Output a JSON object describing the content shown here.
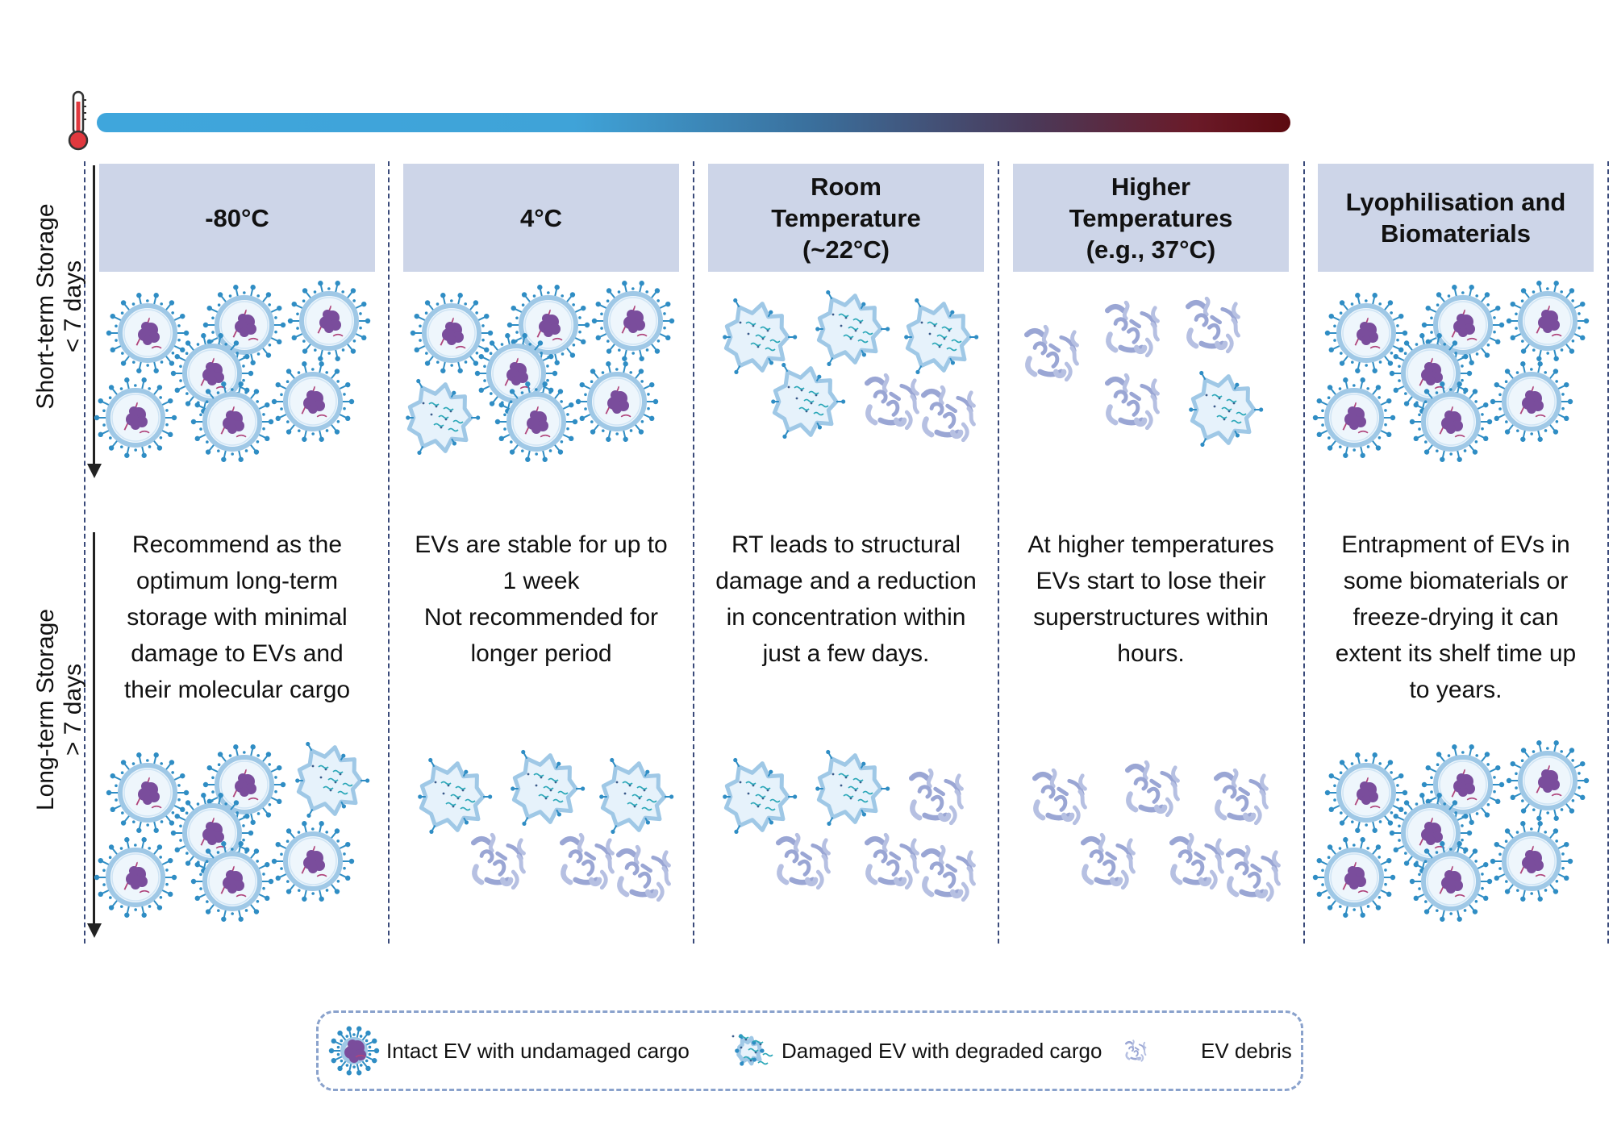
{
  "axis": {
    "short_term": {
      "line1": "Short-term Storage",
      "line2": "< 7 days"
    },
    "long_term": {
      "line1": "Long-term Storage",
      "line2": "> 7 days"
    }
  },
  "columns": [
    {
      "header": "-80°C",
      "description": "Recommend as the\noptimum long-term\nstorage with minimal\ndamage to EVs and\ntheir molecular cargo",
      "top_cluster": [
        "intact",
        "intact",
        "intact",
        "intact",
        "intact",
        "intact",
        "intact"
      ],
      "bottom_cluster": [
        "intact",
        "intact",
        "damaged",
        "intact",
        "intact",
        "intact",
        "intact"
      ]
    },
    {
      "header": "4°C",
      "description": "EVs are stable for up to\n1 week\nNot recommended for\nlonger period",
      "top_cluster": [
        "intact",
        "intact",
        "intact",
        "intact",
        "damaged",
        "intact",
        "intact"
      ],
      "bottom_cluster": [
        "damaged",
        "damaged",
        "damaged",
        "debris",
        "debris",
        "debris"
      ]
    },
    {
      "header": "Room\nTemperature\n(~22°C)",
      "description": "RT leads to structural\ndamage and a reduction\nin concentration within\njust a few days.",
      "top_cluster": [
        "damaged",
        "damaged",
        "damaged",
        "damaged",
        "debris",
        "debris"
      ],
      "bottom_cluster": [
        "damaged",
        "damaged",
        "debris",
        "debris",
        "debris",
        "debris"
      ]
    },
    {
      "header": "Higher\nTemperatures\n(e.g., 37°C)",
      "description": "At higher temperatures\nEVs start to lose their\nsuperstructures within\nhours.",
      "top_cluster": [
        "debris",
        "debris",
        "debris",
        "debris",
        "damaged"
      ],
      "bottom_cluster": [
        "debris",
        "debris",
        "debris",
        "debris",
        "debris",
        "debris"
      ]
    },
    {
      "header": "Lyophilisation and\nBiomaterials",
      "description": "Entrapment of EVs in\nsome biomaterials or\nfreeze-drying it can\nextent its shelf time up\nto years.",
      "top_cluster": [
        "intact",
        "intact",
        "intact",
        "intact",
        "intact",
        "intact",
        "intact"
      ],
      "bottom_cluster": [
        "intact",
        "intact",
        "intact",
        "intact",
        "intact",
        "intact",
        "intact"
      ]
    }
  ],
  "legend": {
    "intact": {
      "label": "Intact EV with undamaged cargo",
      "icon": "intact-ev-icon"
    },
    "damaged": {
      "label": "Damaged EV with degraded cargo",
      "icon": "damaged-ev-icon"
    },
    "debris": {
      "label": "EV debris",
      "icon": "ev-debris-icon"
    }
  },
  "icons": {
    "thermometer": "thermometer-icon"
  },
  "colors": {
    "header_bg": "#cdd5e8",
    "gradient_cold": "#3fa6dc",
    "gradient_hot": "#5c0a10",
    "ev_membrane": "#9fc8e6",
    "ev_spike": "#2f8dc4",
    "cargo": "#7a4d9c",
    "debris": "#9aa6d4",
    "divider": "#3a4a7a"
  }
}
